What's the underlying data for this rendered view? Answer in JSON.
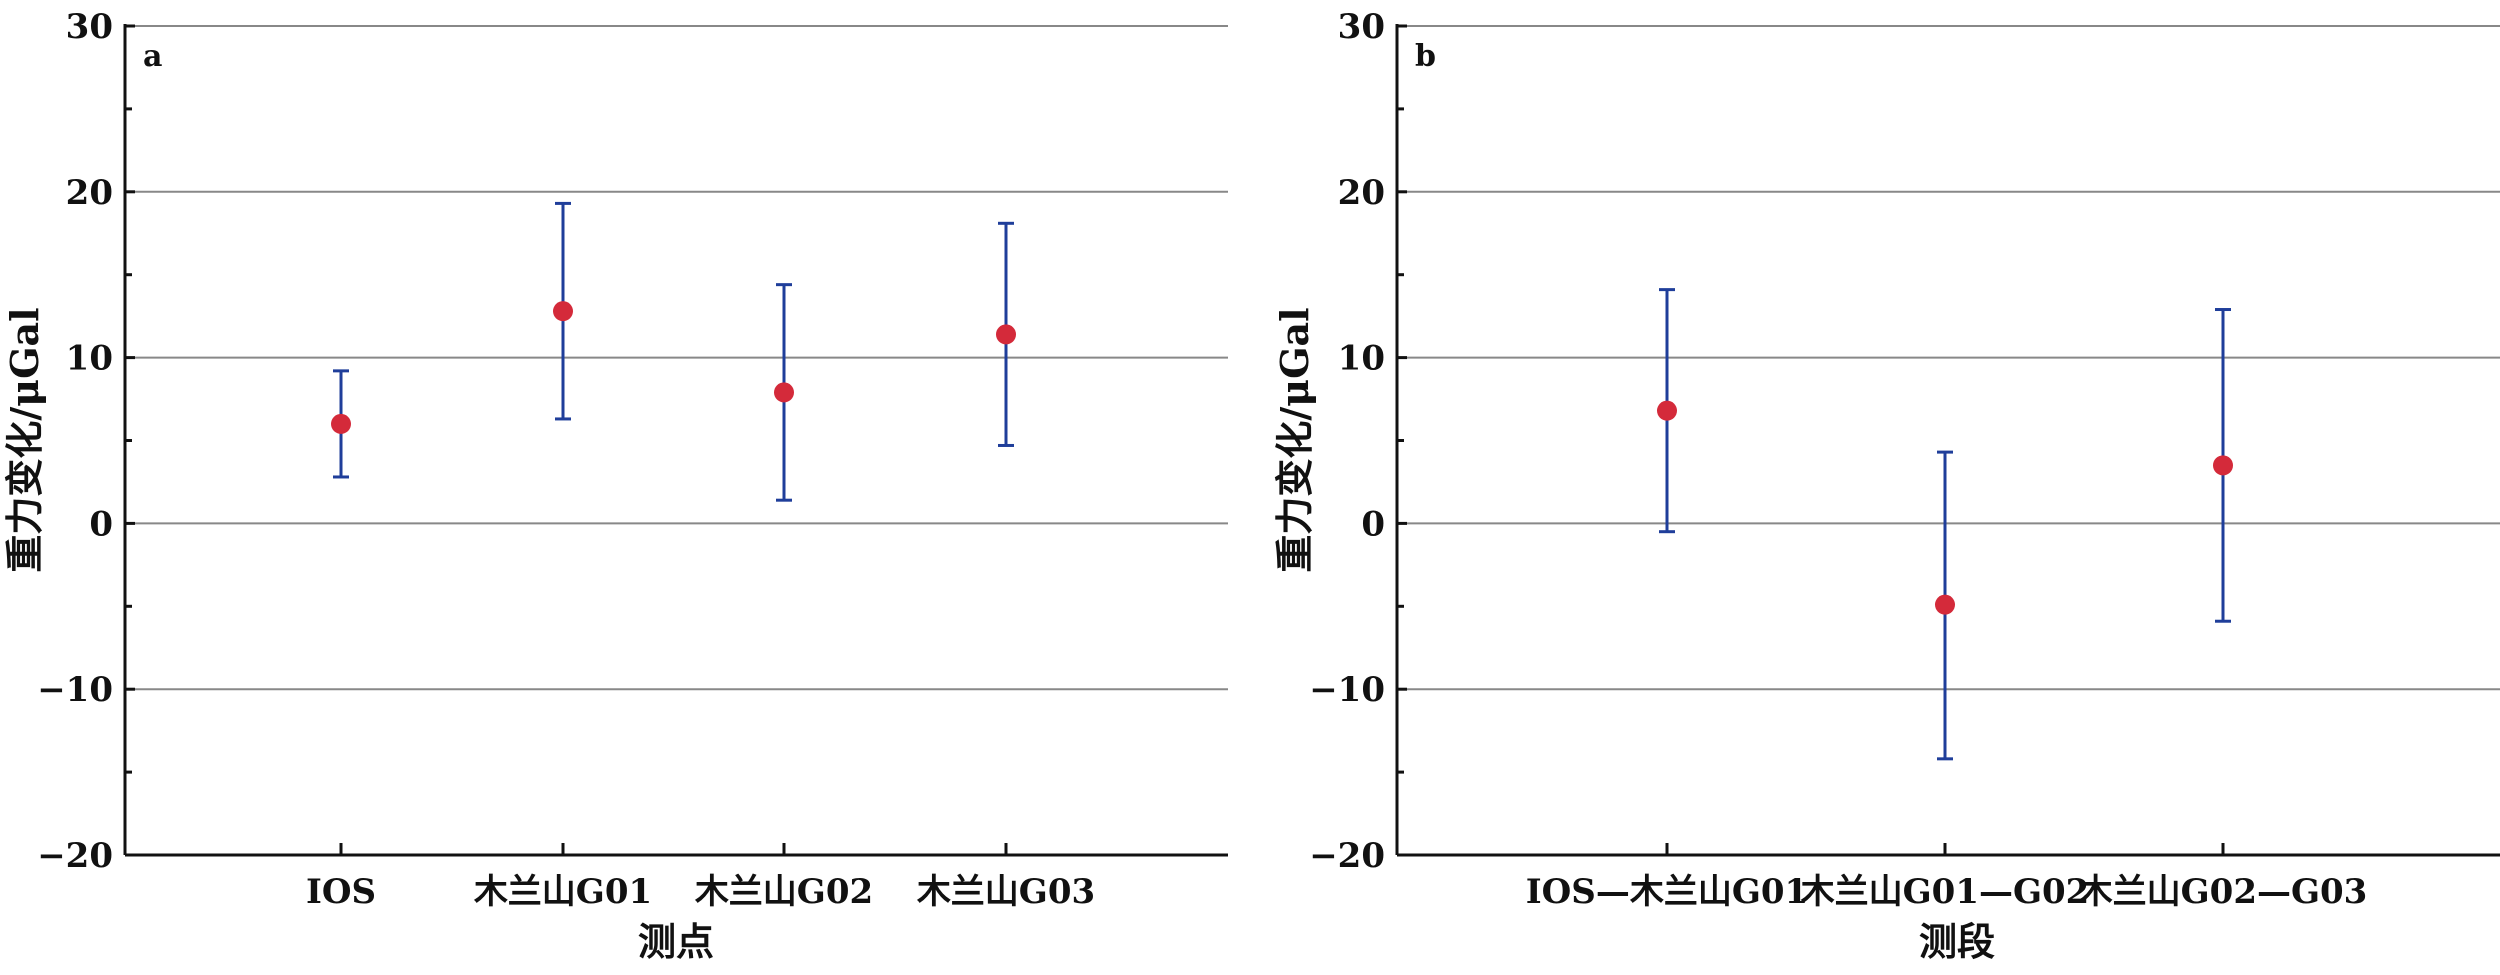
{
  "chart_data": [
    {
      "type": "scatter",
      "panel_label": "a",
      "xlabel": "测点",
      "ylabel": "重力变化/μGal",
      "ylim": [
        -20,
        30
      ],
      "yticks": [
        -20,
        -10,
        0,
        10,
        20,
        30
      ],
      "ytick_labels": [
        "−20",
        "−10",
        "0",
        "10",
        "20",
        "30"
      ],
      "grid": true,
      "categories": [
        "IOS",
        "木兰山G01",
        "木兰山G02",
        "木兰山G03"
      ],
      "values": [
        6.0,
        12.8,
        7.9,
        11.4
      ],
      "error_low": [
        2.8,
        6.3,
        1.4,
        4.7
      ],
      "error_high": [
        9.2,
        19.3,
        14.4,
        18.1
      ],
      "colors": {
        "point": "#d42a3a",
        "errorbar": "#1f3e9a",
        "grid": "#888888",
        "axis": "#111111"
      }
    },
    {
      "type": "scatter",
      "panel_label": "b",
      "xlabel": "测段",
      "ylabel": "重力变化/μGal",
      "ylim": [
        -20,
        30
      ],
      "yticks": [
        -20,
        -10,
        0,
        10,
        20,
        30
      ],
      "ytick_labels": [
        "−20",
        "−10",
        "0",
        "10",
        "20",
        "30"
      ],
      "grid": true,
      "categories": [
        "IOS—木兰山G01",
        "木兰山G01—G02",
        "木兰山G02—G03"
      ],
      "values": [
        6.8,
        -4.9,
        3.5
      ],
      "error_low": [
        -0.5,
        -14.2,
        -5.9
      ],
      "error_high": [
        14.1,
        4.3,
        12.9
      ],
      "colors": {
        "point": "#d42a3a",
        "errorbar": "#1f3e9a",
        "grid": "#888888",
        "axis": "#111111"
      }
    }
  ]
}
